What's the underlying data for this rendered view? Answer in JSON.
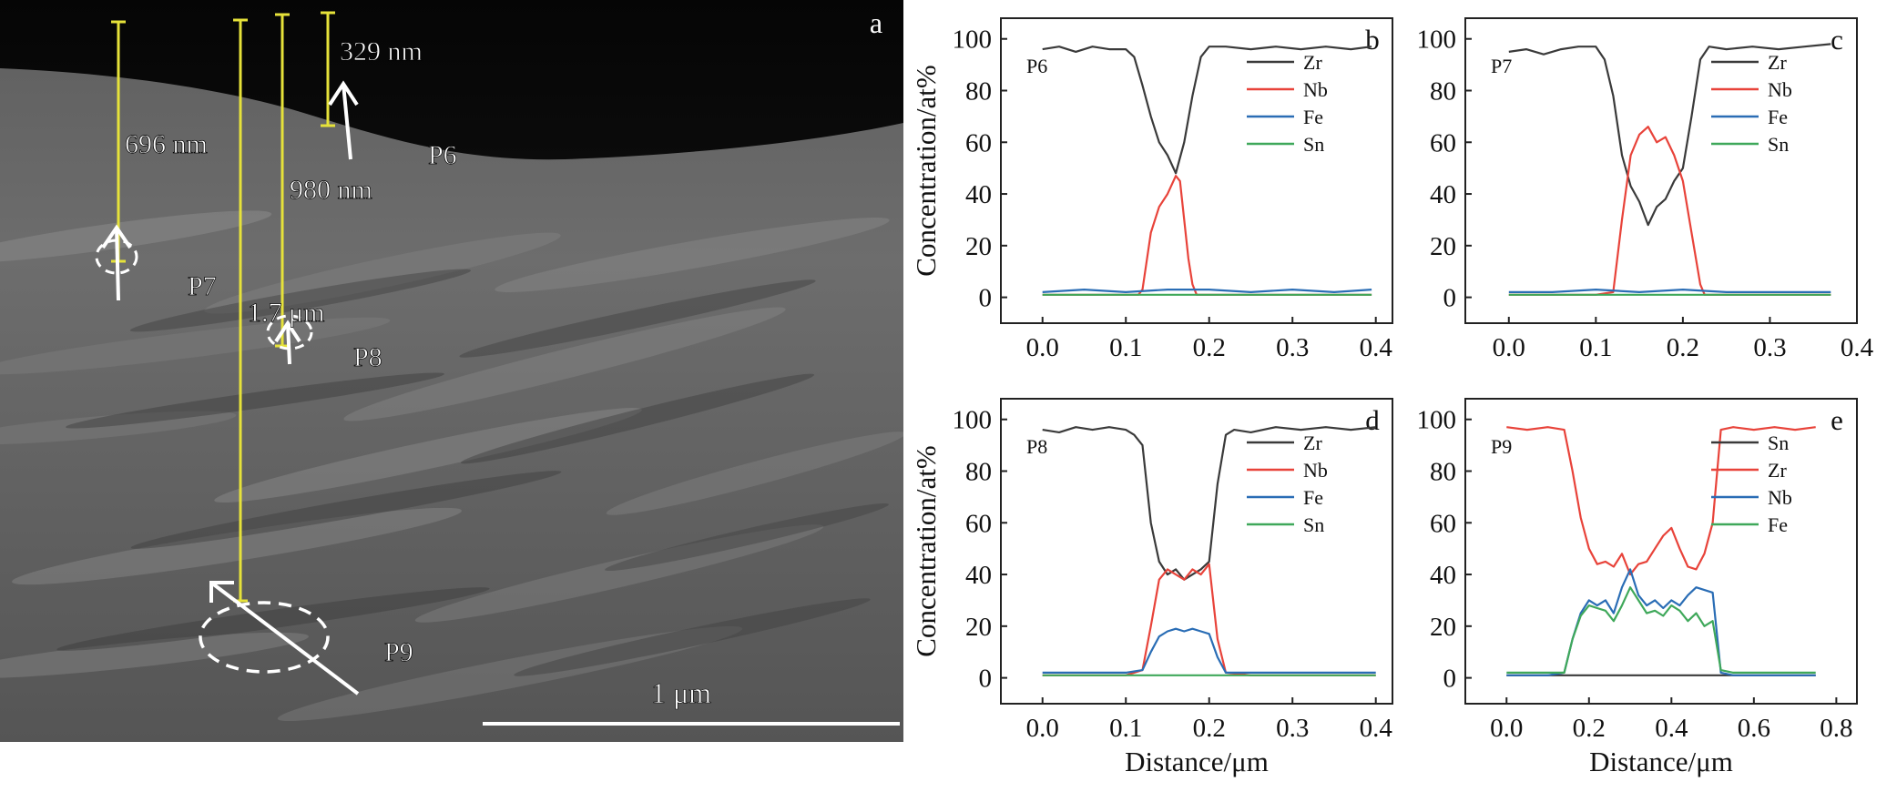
{
  "stem": {
    "panel_letter": "a",
    "scale_bar_label": "1 μm",
    "region_labels": [
      "P6",
      "P7",
      "P8",
      "P9"
    ],
    "depth_labels": [
      "329 nm",
      "696 nm",
      "980 nm",
      "1.7 μm"
    ]
  },
  "chart_data": [
    {
      "type": "line",
      "panel": "b",
      "annotation": "P6",
      "xlabel": "",
      "ylabel": "Concentration/at%",
      "xlim": [
        -0.05,
        0.42
      ],
      "ylim": [
        -10,
        108
      ],
      "xticks": [
        0.0,
        0.1,
        0.2,
        0.3,
        0.4
      ],
      "yticks": [
        0,
        20,
        40,
        60,
        80,
        100
      ],
      "legend_position": "top-right",
      "series": [
        {
          "name": "Zr",
          "color": "#3a3a3a",
          "x": [
            0.0,
            0.02,
            0.04,
            0.06,
            0.08,
            0.1,
            0.11,
            0.12,
            0.13,
            0.14,
            0.15,
            0.16,
            0.17,
            0.18,
            0.19,
            0.2,
            0.22,
            0.25,
            0.28,
            0.31,
            0.34,
            0.37,
            0.395
          ],
          "y": [
            96,
            97,
            95,
            97,
            96,
            96,
            93,
            82,
            70,
            60,
            55,
            48,
            60,
            78,
            93,
            97,
            97,
            96,
            97,
            96,
            97,
            96,
            97
          ]
        },
        {
          "name": "Nb",
          "color": "#e8433a",
          "x": [
            0.0,
            0.05,
            0.1,
            0.115,
            0.12,
            0.13,
            0.14,
            0.15,
            0.16,
            0.165,
            0.17,
            0.175,
            0.18,
            0.185,
            0.2,
            0.25,
            0.3,
            0.35,
            0.395
          ],
          "y": [
            1,
            1,
            1,
            1,
            3,
            25,
            35,
            40,
            47,
            45,
            30,
            15,
            5,
            1,
            1,
            1,
            1,
            1,
            1
          ]
        },
        {
          "name": "Fe",
          "color": "#2a6db5",
          "x": [
            0.0,
            0.05,
            0.1,
            0.15,
            0.2,
            0.25,
            0.3,
            0.35,
            0.395
          ],
          "y": [
            2,
            3,
            2,
            3,
            3,
            2,
            3,
            2,
            3
          ]
        },
        {
          "name": "Sn",
          "color": "#3fa85a",
          "x": [
            0.0,
            0.1,
            0.2,
            0.3,
            0.395
          ],
          "y": [
            1,
            1,
            1,
            1,
            1
          ]
        }
      ]
    },
    {
      "type": "line",
      "panel": "c",
      "annotation": "P7",
      "xlabel": "",
      "ylabel": "",
      "xlim": [
        -0.05,
        0.4
      ],
      "ylim": [
        -10,
        108
      ],
      "xticks": [
        0.0,
        0.1,
        0.2,
        0.3,
        0.4
      ],
      "yticks": [
        0,
        20,
        40,
        60,
        80,
        100
      ],
      "legend_position": "top-right",
      "series": [
        {
          "name": "Zr",
          "color": "#3a3a3a",
          "x": [
            0.0,
            0.02,
            0.04,
            0.06,
            0.08,
            0.1,
            0.11,
            0.12,
            0.13,
            0.14,
            0.15,
            0.16,
            0.17,
            0.18,
            0.19,
            0.2,
            0.21,
            0.22,
            0.23,
            0.25,
            0.28,
            0.31,
            0.34,
            0.37
          ],
          "y": [
            95,
            96,
            94,
            96,
            97,
            97,
            92,
            78,
            55,
            43,
            37,
            28,
            35,
            38,
            45,
            50,
            70,
            92,
            97,
            96,
            97,
            96,
            97,
            98
          ]
        },
        {
          "name": "Nb",
          "color": "#e8433a",
          "x": [
            0.0,
            0.05,
            0.1,
            0.12,
            0.13,
            0.14,
            0.15,
            0.16,
            0.17,
            0.18,
            0.19,
            0.2,
            0.21,
            0.22,
            0.225,
            0.25,
            0.3,
            0.37
          ],
          "y": [
            1,
            1,
            1,
            2,
            30,
            55,
            63,
            66,
            60,
            62,
            55,
            45,
            25,
            5,
            1,
            1,
            1,
            1
          ]
        },
        {
          "name": "Fe",
          "color": "#2a6db5",
          "x": [
            0.0,
            0.05,
            0.1,
            0.15,
            0.2,
            0.25,
            0.3,
            0.37
          ],
          "y": [
            2,
            2,
            3,
            2,
            3,
            2,
            2,
            2
          ]
        },
        {
          "name": "Sn",
          "color": "#3fa85a",
          "x": [
            0.0,
            0.1,
            0.2,
            0.3,
            0.37
          ],
          "y": [
            1,
            1,
            1,
            1,
            1
          ]
        }
      ]
    },
    {
      "type": "line",
      "panel": "d",
      "annotation": "P8",
      "xlabel": "Distance/μm",
      "ylabel": "Concentration/at%",
      "xlim": [
        -0.05,
        0.42
      ],
      "ylim": [
        -10,
        108
      ],
      "xticks": [
        0.0,
        0.1,
        0.2,
        0.3,
        0.4
      ],
      "yticks": [
        0,
        20,
        40,
        60,
        80,
        100
      ],
      "legend_position": "top-right",
      "series": [
        {
          "name": "Zr",
          "color": "#3a3a3a",
          "x": [
            0.0,
            0.02,
            0.04,
            0.06,
            0.08,
            0.1,
            0.11,
            0.12,
            0.13,
            0.14,
            0.15,
            0.16,
            0.17,
            0.18,
            0.19,
            0.2,
            0.21,
            0.22,
            0.23,
            0.25,
            0.28,
            0.31,
            0.34,
            0.37,
            0.4
          ],
          "y": [
            96,
            95,
            97,
            96,
            97,
            96,
            94,
            90,
            60,
            45,
            40,
            42,
            38,
            40,
            42,
            45,
            75,
            94,
            96,
            95,
            97,
            96,
            97,
            96,
            97
          ]
        },
        {
          "name": "Nb",
          "color": "#e8433a",
          "x": [
            0.0,
            0.05,
            0.1,
            0.12,
            0.13,
            0.14,
            0.15,
            0.16,
            0.17,
            0.18,
            0.19,
            0.2,
            0.21,
            0.22,
            0.25,
            0.3,
            0.35,
            0.4
          ],
          "y": [
            1,
            1,
            1,
            3,
            20,
            38,
            42,
            40,
            38,
            42,
            40,
            44,
            15,
            2,
            1,
            1,
            1,
            1
          ]
        },
        {
          "name": "Fe",
          "color": "#2a6db5",
          "x": [
            0.0,
            0.05,
            0.1,
            0.12,
            0.13,
            0.14,
            0.15,
            0.16,
            0.17,
            0.18,
            0.19,
            0.2,
            0.21,
            0.22,
            0.25,
            0.3,
            0.35,
            0.4
          ],
          "y": [
            2,
            2,
            2,
            3,
            10,
            16,
            18,
            19,
            18,
            19,
            18,
            17,
            8,
            2,
            2,
            2,
            2,
            2
          ]
        },
        {
          "name": "Sn",
          "color": "#3fa85a",
          "x": [
            0.0,
            0.1,
            0.2,
            0.3,
            0.4
          ],
          "y": [
            1,
            1,
            1,
            1,
            1
          ]
        }
      ]
    },
    {
      "type": "line",
      "panel": "e",
      "annotation": "P9",
      "xlabel": "Distance/μm",
      "ylabel": "",
      "xlim": [
        -0.1,
        0.85
      ],
      "ylim": [
        -10,
        108
      ],
      "xticks": [
        0.0,
        0.2,
        0.4,
        0.6,
        0.8
      ],
      "yticks": [
        0,
        20,
        40,
        60,
        80,
        100
      ],
      "legend_position": "top-right",
      "series": [
        {
          "name": "Sn",
          "color": "#3a3a3a",
          "x": [
            0.0,
            0.2,
            0.4,
            0.6,
            0.75
          ],
          "y": [
            1,
            1,
            1,
            1,
            1
          ]
        },
        {
          "name": "Zr",
          "color": "#e8433a",
          "x": [
            0.0,
            0.05,
            0.1,
            0.14,
            0.16,
            0.18,
            0.2,
            0.22,
            0.24,
            0.26,
            0.28,
            0.3,
            0.32,
            0.34,
            0.36,
            0.38,
            0.4,
            0.42,
            0.44,
            0.46,
            0.48,
            0.5,
            0.52,
            0.55,
            0.6,
            0.65,
            0.7,
            0.75
          ],
          "y": [
            97,
            96,
            97,
            96,
            80,
            62,
            50,
            44,
            45,
            43,
            48,
            40,
            44,
            45,
            50,
            55,
            58,
            50,
            43,
            42,
            48,
            60,
            96,
            97,
            96,
            97,
            96,
            97
          ]
        },
        {
          "name": "Nb",
          "color": "#2a6db5",
          "x": [
            0.0,
            0.05,
            0.1,
            0.14,
            0.16,
            0.18,
            0.2,
            0.22,
            0.24,
            0.26,
            0.28,
            0.3,
            0.32,
            0.34,
            0.36,
            0.38,
            0.4,
            0.42,
            0.44,
            0.46,
            0.48,
            0.5,
            0.52,
            0.55,
            0.6,
            0.7,
            0.75
          ],
          "y": [
            1,
            1,
            1,
            2,
            15,
            25,
            30,
            28,
            30,
            25,
            35,
            42,
            32,
            28,
            30,
            27,
            30,
            28,
            32,
            35,
            34,
            33,
            2,
            1,
            1,
            1,
            1
          ]
        },
        {
          "name": "Fe",
          "color": "#3fa85a",
          "x": [
            0.0,
            0.05,
            0.1,
            0.14,
            0.16,
            0.18,
            0.2,
            0.22,
            0.24,
            0.26,
            0.28,
            0.3,
            0.32,
            0.34,
            0.36,
            0.38,
            0.4,
            0.42,
            0.44,
            0.46,
            0.48,
            0.5,
            0.52,
            0.55,
            0.6,
            0.7,
            0.75
          ],
          "y": [
            2,
            2,
            2,
            2,
            15,
            24,
            28,
            27,
            26,
            22,
            28,
            35,
            30,
            25,
            26,
            24,
            28,
            26,
            22,
            25,
            20,
            22,
            3,
            2,
            2,
            2,
            2
          ]
        }
      ]
    }
  ]
}
